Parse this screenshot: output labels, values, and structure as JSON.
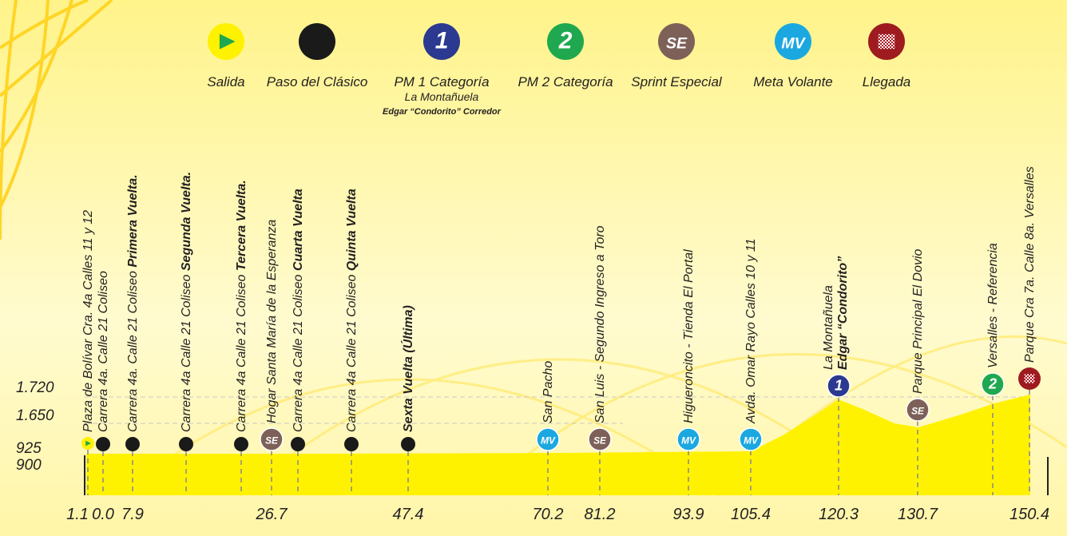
{
  "legend": {
    "items": [
      {
        "kind": "salida",
        "label": "Salida"
      },
      {
        "kind": "paso",
        "label": "Paso del Clásico"
      },
      {
        "kind": "pm1",
        "glyph": "1",
        "label": "PM 1 Categoría",
        "sub": "La Montañuela",
        "sub2": "Edgar “Condorito” Corredor"
      },
      {
        "kind": "pm2",
        "glyph": "2",
        "label": "PM 2 Categoría"
      },
      {
        "kind": "se",
        "glyph": "SE",
        "label": "Sprint Especial"
      },
      {
        "kind": "mv",
        "glyph": "MV",
        "label": "Meta Volante"
      },
      {
        "kind": "llegada",
        "label": "Llegada"
      }
    ]
  },
  "elevations": [
    "1.720",
    "1.650",
    "925",
    "900"
  ],
  "waypoints": [
    {
      "icon": 0,
      "text": "Plaza de Bolívar Cra. 4a Calles 11 y 12",
      "km": "1.1"
    },
    {
      "icon": 1,
      "text": "Carrera 4a. Calle 21 Coliseo",
      "km": "0.0"
    },
    {
      "icon": 1,
      "text": "Carrera 4a. Calle 21 Coliseo",
      "bold": "Primera Vuelta.",
      "km": "7.9"
    },
    {
      "icon": 1,
      "text": "Carrera 4a Calle 21 Coliseo",
      "bold": "Segunda Vuelta."
    },
    {
      "icon": 1,
      "text": "Carrera 4a Calle 21 Coliseo",
      "bold": "Tercera Vuelta."
    },
    {
      "icon": 4,
      "text": "Hogar Santa María de la Esperanza",
      "km": "26.7"
    },
    {
      "icon": 1,
      "text": "Carrera 4a Calle 21 Coliseo",
      "bold": "Cuarta Vuelta"
    },
    {
      "icon": 1,
      "text": "Carrera 4a Calle 21 Coliseo",
      "bold": "Quinta Vuelta"
    },
    {
      "icon": 1,
      "bold": "Sexta Vuelta (Última)",
      "km": "47.4"
    },
    {
      "icon": 5,
      "text": "San Pacho",
      "km": "70.2"
    },
    {
      "icon": 4,
      "text": "San Luis - Segundo Ingreso a Toro",
      "km": "81.2"
    },
    {
      "icon": 5,
      "text": "Higueroncito - Tienda El Portal",
      "km": "93.9"
    },
    {
      "icon": 5,
      "text": "Avda. Omar Rayo Calles 10 y 11",
      "km": "105.4"
    },
    {
      "icon": 2,
      "text": "La Montañuela",
      "bold": "Edgar “Condorito”",
      "km": "120.3"
    },
    {
      "icon": 4,
      "text": "Parque Principal El Dovio",
      "km": "130.7"
    },
    {
      "icon": 3,
      "text": "Versalles - Referencia"
    },
    {
      "icon": 6,
      "text": "Parque Cra 7a. Calle 8a. Versalles",
      "km": "150.4"
    }
  ]
}
